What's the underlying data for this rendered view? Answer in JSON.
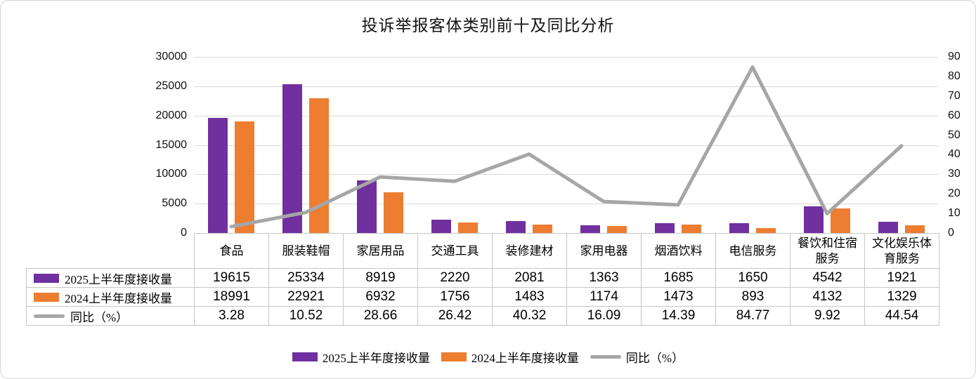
{
  "title": "投诉举报客体类别前十及同比分析",
  "colors": {
    "bar_2025": "#7030A0",
    "bar_2024": "#ED7D31",
    "line_yoy": "#A6A6A6",
    "gridline": "#D9D9D9",
    "table_border": "#C6C6C6"
  },
  "chart_data": {
    "type": "bar",
    "subtype": "grouped-bars-with-line-overlay",
    "title": "投诉举报客体类别前十及同比分析",
    "categories": [
      "食品",
      "服装鞋帽",
      "家居用品",
      "交通工具",
      "装修建材",
      "家用电器",
      "烟酒饮料",
      "电信服务",
      "餐饮和住宿服务",
      "文化娱乐体育服务"
    ],
    "series": [
      {
        "name": "2025上半年度接收量",
        "type": "bar",
        "axis": "left",
        "color": "#7030A0",
        "values": [
          19615,
          25334,
          8919,
          2220,
          2081,
          1363,
          1685,
          1650,
          4542,
          1921
        ]
      },
      {
        "name": "2024上半年度接收量",
        "type": "bar",
        "axis": "left",
        "color": "#ED7D31",
        "values": [
          18991,
          22921,
          6932,
          1756,
          1483,
          1174,
          1473,
          893,
          4132,
          1329
        ]
      },
      {
        "name": "同比（%）",
        "type": "line",
        "axis": "right",
        "color": "#A6A6A6",
        "values": [
          3.28,
          10.52,
          28.66,
          26.42,
          40.32,
          16.09,
          14.39,
          84.77,
          9.92,
          44.54
        ]
      }
    ],
    "left_axis": {
      "min": 0,
      "max": 30000,
      "step": 5000,
      "tick_labels": [
        "0",
        "5000",
        "10000",
        "15000",
        "20000",
        "25000",
        "30000"
      ]
    },
    "right_axis": {
      "min": 0,
      "max": 90,
      "step": 10,
      "tick_labels": [
        "0",
        "10",
        "20",
        "30",
        "40",
        "50",
        "60",
        "70",
        "80",
        "90"
      ]
    },
    "grid": true,
    "legend_position": "bottom",
    "data_table_shown": true
  },
  "legend": {
    "items": [
      {
        "label": "2025上半年度接收量",
        "swatch": "purple-rect"
      },
      {
        "label": "2024上半年度接收量",
        "swatch": "orange-rect"
      },
      {
        "label": "同比（%）",
        "swatch": "gray-line"
      }
    ]
  }
}
